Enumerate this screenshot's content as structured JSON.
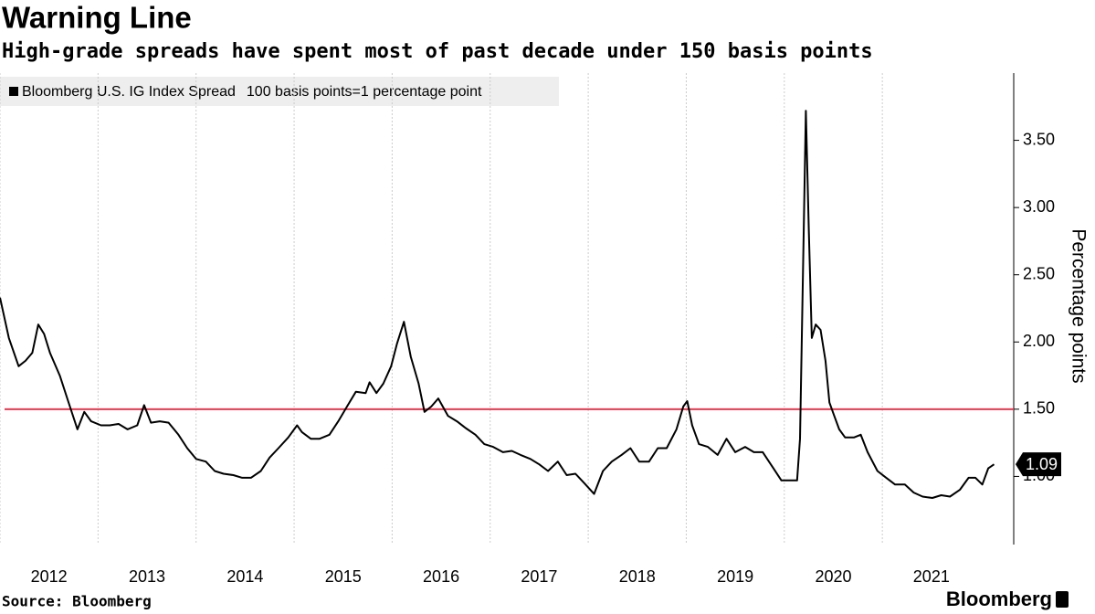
{
  "chart_data": {
    "type": "line",
    "title": "Warning Line",
    "subtitle": "High-grade spreads have spent most of past decade under 150 basis points",
    "legend_note": "100 basis points=1 percentage point",
    "y_axis_label": "Percentage points",
    "source": "Source: Bloomberg",
    "brand": "Bloomberg",
    "xlim": [
      2012.0,
      2022.34
    ],
    "xticks": [
      {
        "value": 2012,
        "label": "2012"
      },
      {
        "value": 2013,
        "label": "2013"
      },
      {
        "value": 2014,
        "label": "2014"
      },
      {
        "value": 2015,
        "label": "2015"
      },
      {
        "value": 2016,
        "label": "2016"
      },
      {
        "value": 2017,
        "label": "2017"
      },
      {
        "value": 2018,
        "label": "2018"
      },
      {
        "value": 2019,
        "label": "2019"
      },
      {
        "value": 2020,
        "label": "2020"
      },
      {
        "value": 2021,
        "label": "2021"
      }
    ],
    "x_grid": true,
    "ylim": [
      0.5,
      4.0
    ],
    "yticks": [
      {
        "value": 1.0,
        "label": "1.00"
      },
      {
        "value": 1.5,
        "label": "1.50"
      },
      {
        "value": 2.0,
        "label": "2.00"
      },
      {
        "value": 2.5,
        "label": "2.50"
      },
      {
        "value": 3.0,
        "label": "3.00"
      },
      {
        "value": 3.5,
        "label": "3.50"
      }
    ],
    "reference_line": {
      "value": 1.5,
      "color": "#e8384f"
    },
    "last_value_label": "1.09",
    "x": [
      2012.0,
      2012.09,
      2012.19,
      2012.26,
      2012.33,
      2012.39,
      2012.45,
      2012.51,
      2012.61,
      2012.7,
      2012.79,
      2012.86,
      2012.93,
      2013.03,
      2013.12,
      2013.21,
      2013.3,
      2013.4,
      2013.47,
      2013.54,
      2013.63,
      2013.72,
      2013.82,
      2013.91,
      2014.0,
      2014.1,
      2014.19,
      2014.28,
      2014.38,
      2014.47,
      2014.56,
      2014.66,
      2014.75,
      2014.84,
      2014.94,
      2015.03,
      2015.08,
      2015.17,
      2015.26,
      2015.36,
      2015.45,
      2015.54,
      2015.63,
      2015.73,
      2015.77,
      2015.84,
      2015.91,
      2015.99,
      2016.05,
      2016.12,
      2016.19,
      2016.27,
      2016.33,
      2016.4,
      2016.47,
      2016.57,
      2016.66,
      2016.75,
      2016.85,
      2016.94,
      2017.03,
      2017.13,
      2017.22,
      2017.31,
      2017.41,
      2017.5,
      2017.59,
      2017.69,
      2017.78,
      2017.87,
      2017.96,
      2018.06,
      2018.15,
      2018.24,
      2018.34,
      2018.43,
      2018.52,
      2018.62,
      2018.71,
      2018.8,
      2018.9,
      2018.97,
      2019.01,
      2019.06,
      2019.13,
      2019.22,
      2019.32,
      2019.41,
      2019.5,
      2019.6,
      2019.69,
      2019.78,
      2019.88,
      2019.97,
      2020.06,
      2020.13,
      2020.16,
      2020.19,
      2020.22,
      2020.25,
      2020.28,
      2020.32,
      2020.37,
      2020.42,
      2020.46,
      2020.51,
      2020.56,
      2020.62,
      2020.71,
      2020.78,
      2020.85,
      2020.95,
      2021.04,
      2021.13,
      2021.23,
      2021.32,
      2021.41,
      2021.51,
      2021.6,
      2021.69,
      2021.79,
      2021.88,
      2021.95,
      2022.02,
      2022.08,
      2022.14
    ],
    "series": [
      {
        "name": "Bloomberg U.S. IG Index Spread",
        "color": "#000000",
        "values": [
          2.33,
          2.03,
          1.82,
          1.86,
          1.92,
          2.13,
          2.06,
          1.92,
          1.75,
          1.55,
          1.35,
          1.48,
          1.41,
          1.38,
          1.38,
          1.39,
          1.35,
          1.38,
          1.53,
          1.4,
          1.41,
          1.4,
          1.31,
          1.21,
          1.13,
          1.11,
          1.04,
          1.02,
          1.01,
          0.99,
          0.99,
          1.04,
          1.14,
          1.21,
          1.29,
          1.38,
          1.33,
          1.28,
          1.28,
          1.31,
          1.41,
          1.52,
          1.63,
          1.62,
          1.7,
          1.62,
          1.69,
          1.82,
          1.99,
          2.15,
          1.89,
          1.69,
          1.48,
          1.52,
          1.58,
          1.45,
          1.41,
          1.36,
          1.31,
          1.24,
          1.22,
          1.18,
          1.19,
          1.16,
          1.13,
          1.09,
          1.04,
          1.11,
          1.01,
          1.02,
          0.95,
          0.87,
          1.04,
          1.11,
          1.16,
          1.21,
          1.11,
          1.11,
          1.21,
          1.21,
          1.35,
          1.52,
          1.56,
          1.38,
          1.24,
          1.22,
          1.16,
          1.28,
          1.18,
          1.22,
          1.18,
          1.18,
          1.07,
          0.97,
          0.97,
          0.97,
          1.28,
          2.5,
          3.72,
          2.84,
          2.03,
          2.13,
          2.09,
          1.86,
          1.55,
          1.45,
          1.35,
          1.29,
          1.29,
          1.31,
          1.18,
          1.04,
          0.99,
          0.94,
          0.94,
          0.88,
          0.85,
          0.84,
          0.86,
          0.85,
          0.9,
          0.99,
          0.99,
          0.94,
          1.06,
          1.09
        ]
      }
    ]
  }
}
